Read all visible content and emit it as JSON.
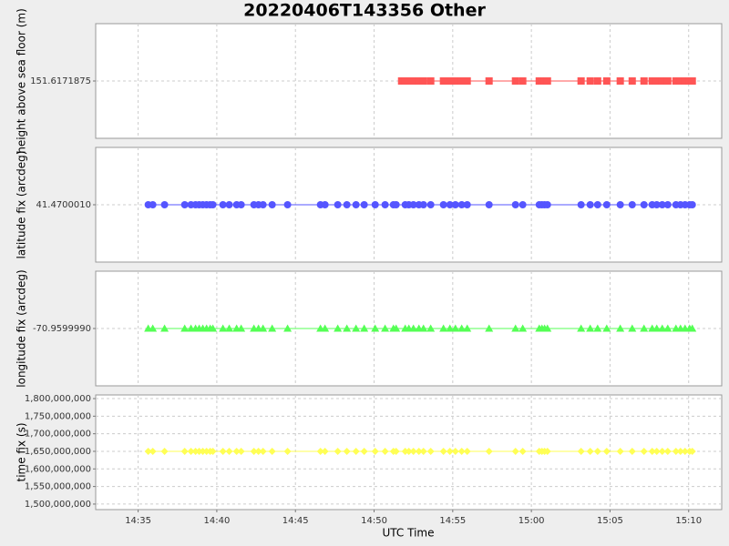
{
  "figure": {
    "title": "20220406T143356 Other",
    "x_label": "UTC Time",
    "xlim": [
      872.3,
      912.1
    ],
    "xticks": [
      {
        "value": 875,
        "label": "14:35"
      },
      {
        "value": 880,
        "label": "14:40"
      },
      {
        "value": 885,
        "label": "14:45"
      },
      {
        "value": 890,
        "label": "14:50"
      },
      {
        "value": 895,
        "label": "14:55"
      },
      {
        "value": 900,
        "label": "15:00"
      },
      {
        "value": 905,
        "label": "15:05"
      },
      {
        "value": 910,
        "label": "15:10"
      }
    ],
    "grid": true
  },
  "chart_data": [
    {
      "type": "line",
      "y_label": "height above sea floor (m)",
      "color": "#ff5555",
      "marker": "square",
      "ylim": [
        150.6171875,
        152.6171875
      ],
      "yticks": [
        151.6171875
      ],
      "x": [
        891.75,
        891.98,
        892.21,
        892.5,
        892.85,
        893.14,
        893.6,
        894.41,
        894.82,
        895.17,
        895.57,
        895.92,
        897.31,
        898.99,
        899.45,
        900.5,
        900.67,
        900.84,
        901.02,
        903.16,
        903.74,
        904.21,
        904.79,
        905.65,
        906.41,
        907.16,
        907.68,
        907.97,
        908.32,
        908.67,
        909.19,
        909.48,
        909.77,
        910.06,
        910.23
      ],
      "values": [
        151.6171875,
        151.6171875,
        151.6171875,
        151.6171875,
        151.6171875,
        151.6171875,
        151.6171875,
        151.6171875,
        151.6171875,
        151.6171875,
        151.6171875,
        151.6171875,
        151.6171875,
        151.6171875,
        151.6171875,
        151.6171875,
        151.6171875,
        151.6171875,
        151.6171875,
        151.6171875,
        151.6171875,
        151.6171875,
        151.6171875,
        151.6171875,
        151.6171875,
        151.6171875,
        151.6171875,
        151.6171875,
        151.6171875,
        151.6171875,
        151.6171875,
        151.6171875,
        151.6171875,
        151.6171875,
        151.6171875
      ]
    },
    {
      "type": "line",
      "y_label": "latitude fix (arcdeg)",
      "color": "#5555ff",
      "marker": "circle",
      "ylim": [
        41.469001,
        41.471001
      ],
      "yticks": [
        {
          "value": 41.470001,
          "label": "41.4700010"
        }
      ],
      "x": [
        875.64,
        875.93,
        876.68,
        877.96,
        878.36,
        878.65,
        878.88,
        879.11,
        879.35,
        879.58,
        879.75,
        880.39,
        880.79,
        881.26,
        881.55,
        882.36,
        882.65,
        882.94,
        883.52,
        884.5,
        886.59,
        886.88,
        887.69,
        888.27,
        888.85,
        889.37,
        890.07,
        890.7,
        891.23,
        891.4,
        891.98,
        892.21,
        892.5,
        892.85,
        893.14,
        893.6,
        894.41,
        894.82,
        895.17,
        895.57,
        895.92,
        897.31,
        898.99,
        899.45,
        900.5,
        900.67,
        900.84,
        901.02,
        903.16,
        903.74,
        904.21,
        904.79,
        905.65,
        906.41,
        907.16,
        907.68,
        907.97,
        908.32,
        908.67,
        909.19,
        909.48,
        909.77,
        910.06,
        910.23
      ],
      "values": [
        41.470001,
        41.470001,
        41.470001,
        41.470001,
        41.470001,
        41.470001,
        41.470001,
        41.470001,
        41.470001,
        41.470001,
        41.470001,
        41.470001,
        41.470001,
        41.470001,
        41.470001,
        41.470001,
        41.470001,
        41.470001,
        41.470001,
        41.470001,
        41.470001,
        41.470001,
        41.470001,
        41.470001,
        41.470001,
        41.470001,
        41.470001,
        41.470001,
        41.470001,
        41.470001,
        41.470001,
        41.470001,
        41.470001,
        41.470001,
        41.470001,
        41.470001,
        41.470001,
        41.470001,
        41.470001,
        41.470001,
        41.470001,
        41.470001,
        41.470001,
        41.470001,
        41.470001,
        41.470001,
        41.470001,
        41.470001,
        41.470001,
        41.470001,
        41.470001,
        41.470001,
        41.470001,
        41.470001,
        41.470001,
        41.470001,
        41.470001,
        41.470001,
        41.470001,
        41.470001,
        41.470001,
        41.470001,
        41.470001,
        41.470001
      ]
    },
    {
      "type": "line",
      "y_label": "longitude fix (arcdeg)",
      "color": "#55ff55",
      "marker": "triangle",
      "ylim": [
        -70.960999,
        -70.958999
      ],
      "yticks": [
        {
          "value": -70.959999,
          "label": "-70.9599990"
        }
      ],
      "x": [
        875.64,
        875.93,
        876.68,
        877.96,
        878.36,
        878.65,
        878.88,
        879.11,
        879.35,
        879.58,
        879.75,
        880.39,
        880.79,
        881.26,
        881.55,
        882.36,
        882.65,
        882.94,
        883.52,
        884.5,
        886.59,
        886.88,
        887.69,
        888.27,
        888.85,
        889.37,
        890.07,
        890.7,
        891.23,
        891.4,
        891.98,
        892.21,
        892.5,
        892.85,
        893.14,
        893.6,
        894.41,
        894.82,
        895.17,
        895.57,
        895.92,
        897.31,
        898.99,
        899.45,
        900.5,
        900.67,
        900.84,
        901.02,
        903.16,
        903.74,
        904.21,
        904.79,
        905.65,
        906.41,
        907.16,
        907.68,
        907.97,
        908.32,
        908.67,
        909.19,
        909.48,
        909.77,
        910.06,
        910.23
      ],
      "values": [
        -70.959999,
        -70.959999,
        -70.959999,
        -70.959999,
        -70.959999,
        -70.959999,
        -70.959999,
        -70.959999,
        -70.959999,
        -70.959999,
        -70.959999,
        -70.959999,
        -70.959999,
        -70.959999,
        -70.959999,
        -70.959999,
        -70.959999,
        -70.959999,
        -70.959999,
        -70.959999,
        -70.959999,
        -70.959999,
        -70.959999,
        -70.959999,
        -70.959999,
        -70.959999,
        -70.959999,
        -70.959999,
        -70.959999,
        -70.959999,
        -70.959999,
        -70.959999,
        -70.959999,
        -70.959999,
        -70.959999,
        -70.959999,
        -70.959999,
        -70.959999,
        -70.959999,
        -70.959999,
        -70.959999,
        -70.959999,
        -70.959999,
        -70.959999,
        -70.959999,
        -70.959999,
        -70.959999,
        -70.959999,
        -70.959999,
        -70.959999,
        -70.959999,
        -70.959999,
        -70.959999,
        -70.959999,
        -70.959999,
        -70.959999,
        -70.959999,
        -70.959999,
        -70.959999,
        -70.959999,
        -70.959999,
        -70.959999,
        -70.959999,
        -70.959999
      ]
    },
    {
      "type": "line",
      "y_label": "time fix (s)",
      "color": "#ffff55",
      "marker": "diamond",
      "ylim": [
        1484300000,
        1810400000
      ],
      "yticks": [
        {
          "value": 1500000000,
          "label": "1,500,000,000"
        },
        {
          "value": 1550000000,
          "label": "1,550,000,000"
        },
        {
          "value": 1600000000,
          "label": "1,600,000,000"
        },
        {
          "value": 1650000000,
          "label": "1,650,000,000"
        },
        {
          "value": 1700000000,
          "label": "1,700,000,000"
        },
        {
          "value": 1750000000,
          "label": "1,750,000,000"
        },
        {
          "value": 1800000000,
          "label": "1,800,000,000"
        }
      ],
      "x": [
        875.64,
        875.93,
        876.68,
        877.96,
        878.36,
        878.65,
        878.88,
        879.11,
        879.35,
        879.58,
        879.75,
        880.39,
        880.79,
        881.26,
        881.55,
        882.36,
        882.65,
        882.94,
        883.52,
        884.5,
        886.59,
        886.88,
        887.69,
        888.27,
        888.85,
        889.37,
        890.07,
        890.7,
        891.23,
        891.4,
        891.98,
        892.21,
        892.5,
        892.85,
        893.14,
        893.6,
        894.41,
        894.82,
        895.17,
        895.57,
        895.92,
        897.31,
        898.99,
        899.45,
        900.5,
        900.67,
        900.84,
        901.02,
        903.16,
        903.74,
        904.21,
        904.79,
        905.65,
        906.41,
        907.16,
        907.68,
        907.97,
        908.32,
        908.67,
        909.19,
        909.48,
        909.77,
        910.06,
        910.23
      ],
      "values": [
        1650000000,
        1650000000,
        1650000000,
        1650000000,
        1650000000,
        1650000000,
        1650000000,
        1650000000,
        1650000000,
        1650000000,
        1650000000,
        1650000000,
        1650000000,
        1650000000,
        1650000000,
        1650000000,
        1650000000,
        1650000000,
        1650000000,
        1650000000,
        1650000000,
        1650000000,
        1650000000,
        1650000000,
        1650000000,
        1650000000,
        1650000000,
        1650000000,
        1650000000,
        1650000000,
        1650000000,
        1650000000,
        1650000000,
        1650000000,
        1650000000,
        1650000000,
        1650000000,
        1650000000,
        1650000000,
        1650000000,
        1650000000,
        1650000000,
        1650000000,
        1650000000,
        1650000000,
        1650000000,
        1650000000,
        1650000000,
        1650000000,
        1650000000,
        1650000000,
        1650000000,
        1650000000,
        1650000000,
        1650000000,
        1650000000,
        1650000000,
        1650000000,
        1650000000,
        1650000000,
        1650000000,
        1650000000,
        1650000000,
        1650000000
      ]
    }
  ]
}
